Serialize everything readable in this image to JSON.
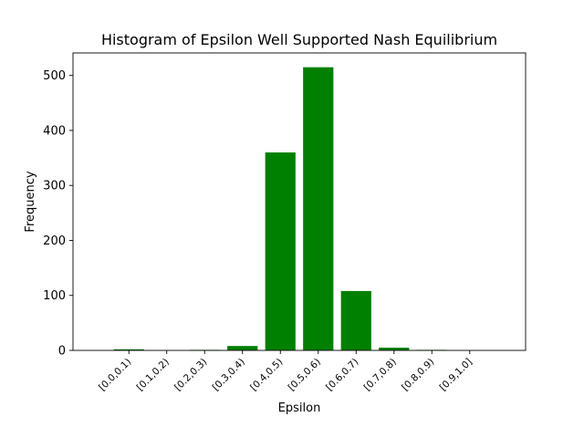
{
  "chart_data": {
    "type": "bar",
    "title": "Histogram of Epsilon Well Supported Nash Equilibrium",
    "xlabel": "Epsilon",
    "ylabel": "Frequency",
    "categories": [
      "[0.0,0.1)",
      "[0.1,0.2)",
      "[0.2,0.3)",
      "[0.3,0.4)",
      "[0.4,0.5)",
      "[0.5,0.6)",
      "[0.6,0.7)",
      "[0.7,0.8)",
      "[0.8,0.9)",
      "[0.9,1.0]"
    ],
    "values": [
      2,
      0,
      1,
      8,
      360,
      515,
      108,
      5,
      1,
      0
    ],
    "ylim": [
      0,
      541
    ],
    "yticks": [
      "0",
      "100",
      "200",
      "300",
      "400",
      "500"
    ],
    "bar_color": "#008000",
    "grid": false,
    "legend": "none"
  }
}
